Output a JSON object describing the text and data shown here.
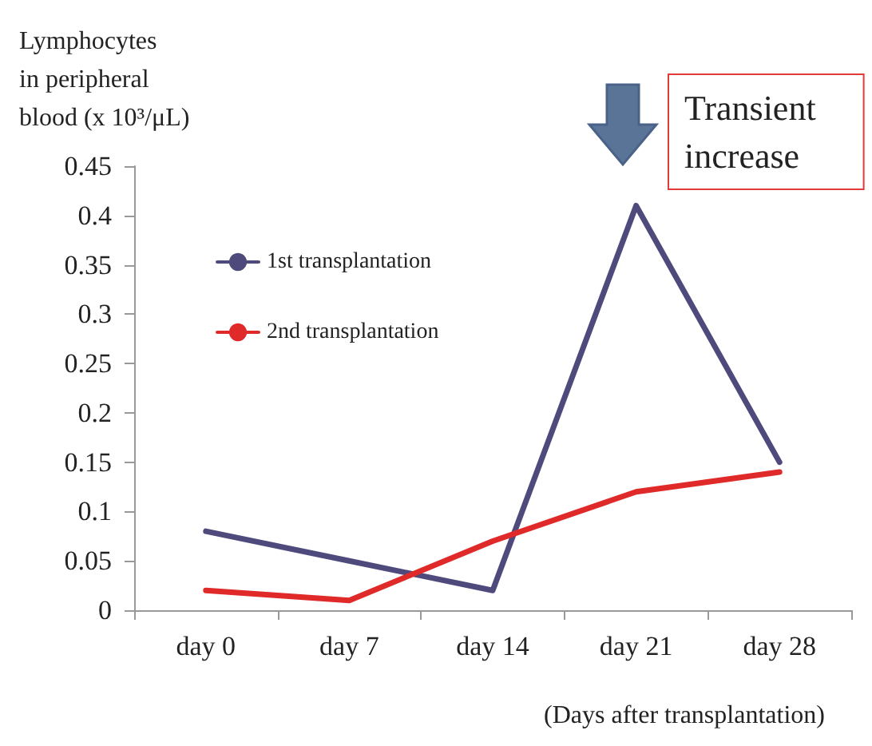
{
  "chart_data": {
    "type": "line",
    "ylabel": "Lymphocytes\nin peripheral\nblood (x 10³/μL)",
    "xlabel": "(Days after transplantation)",
    "categories": [
      "day 0",
      "day 7",
      "day 14",
      "day 21",
      "day 28"
    ],
    "series": [
      {
        "name": "1st transplantation",
        "color": "#4e4a7c",
        "values": [
          0.08,
          0.05,
          0.02,
          0.41,
          0.15
        ]
      },
      {
        "name": "2nd transplantation",
        "color": "#e02a2a",
        "values": [
          0.02,
          0.01,
          0.07,
          0.12,
          0.14
        ]
      }
    ],
    "ylim": [
      0,
      0.45
    ],
    "yticks": [
      0,
      0.05,
      0.1,
      0.15,
      0.2,
      0.25,
      0.3,
      0.35,
      0.4,
      0.45
    ],
    "grid": false,
    "legend": "top left",
    "marker": "none",
    "line_style": "solid",
    "annotations": [
      "Transient increase"
    ]
  }
}
